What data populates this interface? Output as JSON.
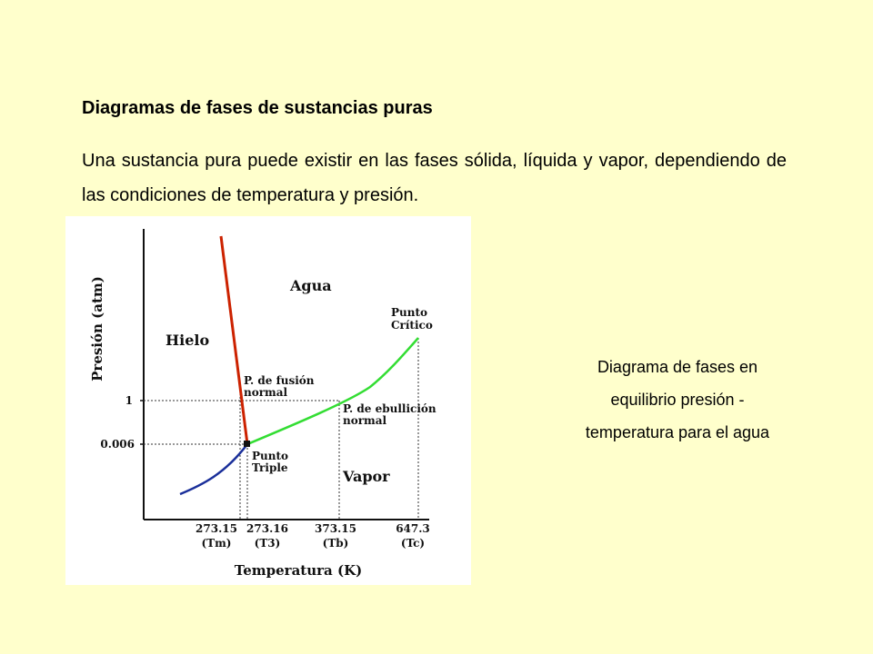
{
  "slide": {
    "title": "Diagramas de fases de sustancias puras",
    "intro": "Una sustancia pura puede existir en las fases sólida, líquida y vapor, dependiendo de las condiciones de temperatura y presión.",
    "caption": [
      "Diagrama de fases en",
      "equilibrio presión -",
      "temperatura para el agua"
    ]
  },
  "diagram": {
    "y_axis_label": "Presión (atm)",
    "x_axis_label": "Temperatura (K)",
    "regions": {
      "solid": "Hielo",
      "liquid": "Agua",
      "vapor": "Vapor"
    },
    "y_ticks": [
      "1",
      "0.006"
    ],
    "x_ticks": [
      {
        "value": "273.15",
        "symbol": "(Tm)"
      },
      {
        "value": "273.16",
        "symbol": "(T3)"
      },
      {
        "value": "373.15",
        "symbol": "(Tb)"
      },
      {
        "value": "647.3",
        "symbol": "(Tc)"
      }
    ],
    "annotations": {
      "critical": [
        "Punto",
        "Crítico"
      ],
      "fusion": [
        "P. de fusión",
        "normal"
      ],
      "boiling": [
        "P. de ebullición",
        "normal"
      ],
      "triple": [
        "Punto",
        "Triple"
      ]
    },
    "colors": {
      "fusion_curve": "#cc2200",
      "vaporization_curve": "#33dd33",
      "sublimation_curve": "#1a2f9a"
    }
  }
}
